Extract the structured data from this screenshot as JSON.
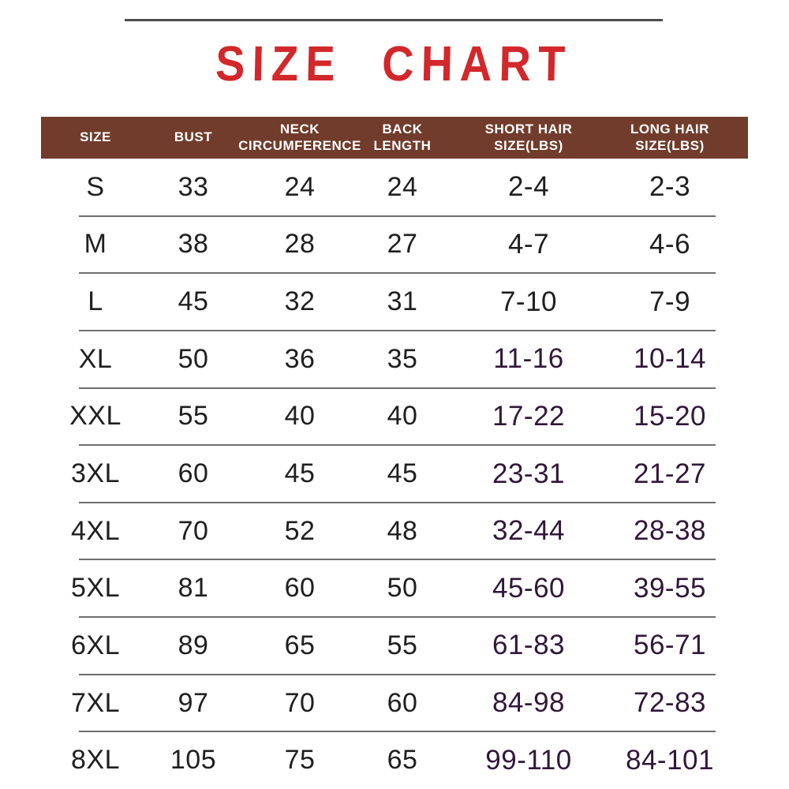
{
  "title": "SIZE CHART",
  "colors": {
    "title_red": "#d2282b",
    "header_brown": "#713c2b",
    "header_text": "#ffffff",
    "body_text": "#1f1f1f",
    "hair_purple": "#311739",
    "divider_gray": "#6e6e6e",
    "top_line_gray": "#4c4c4c"
  },
  "chart_data": {
    "type": "table",
    "title": "SIZE CHART",
    "columns": [
      {
        "key": "size",
        "label": "SIZE",
        "lines": [
          "SIZE"
        ]
      },
      {
        "key": "bust",
        "label": "BUST",
        "lines": [
          "BUST"
        ]
      },
      {
        "key": "neck",
        "label": "NECK CIRCUMFERENCE",
        "lines": [
          "NECK",
          "CIRCUMFERENCE"
        ]
      },
      {
        "key": "back",
        "label": "BACK LENGTH",
        "lines": [
          "BACK",
          "LENGTH"
        ]
      },
      {
        "key": "short_hair",
        "label": "SHORT HAIR SIZE(LBS)",
        "lines": [
          "SHORT HAIR",
          "SIZE(LBS)"
        ]
      },
      {
        "key": "long_hair",
        "label": "LONG HAIR SIZE(LBS)",
        "lines": [
          "LONG HAIR",
          "SIZE(LBS)"
        ]
      }
    ],
    "rows": [
      {
        "size": "S",
        "bust": "33",
        "neck": "24",
        "back": "24",
        "short_hair": "2-4",
        "long_hair": "2-3",
        "hair_color": "black"
      },
      {
        "size": "M",
        "bust": "38",
        "neck": "28",
        "back": "27",
        "short_hair": "4-7",
        "long_hair": "4-6",
        "hair_color": "black"
      },
      {
        "size": "L",
        "bust": "45",
        "neck": "32",
        "back": "31",
        "short_hair": "7-10",
        "long_hair": "7-9",
        "hair_color": "black"
      },
      {
        "size": "XL",
        "bust": "50",
        "neck": "36",
        "back": "35",
        "short_hair": "11-16",
        "long_hair": "10-14",
        "hair_color": "purple"
      },
      {
        "size": "XXL",
        "bust": "55",
        "neck": "40",
        "back": "40",
        "short_hair": "17-22",
        "long_hair": "15-20",
        "hair_color": "purple"
      },
      {
        "size": "3XL",
        "bust": "60",
        "neck": "45",
        "back": "45",
        "short_hair": "23-31",
        "long_hair": "21-27",
        "hair_color": "purple"
      },
      {
        "size": "4XL",
        "bust": "70",
        "neck": "52",
        "back": "48",
        "short_hair": "32-44",
        "long_hair": "28-38",
        "hair_color": "purple"
      },
      {
        "size": "5XL",
        "bust": "81",
        "neck": "60",
        "back": "50",
        "short_hair": "45-60",
        "long_hair": "39-55",
        "hair_color": "purple"
      },
      {
        "size": "6XL",
        "bust": "89",
        "neck": "65",
        "back": "55",
        "short_hair": "61-83",
        "long_hair": "56-71",
        "hair_color": "purple"
      },
      {
        "size": "7XL",
        "bust": "97",
        "neck": "70",
        "back": "60",
        "short_hair": "84-98",
        "long_hair": "72-83",
        "hair_color": "purple"
      },
      {
        "size": "8XL",
        "bust": "105",
        "neck": "75",
        "back": "65",
        "short_hair": "99-110",
        "long_hair": "84-101",
        "hair_color": "purple"
      }
    ]
  }
}
